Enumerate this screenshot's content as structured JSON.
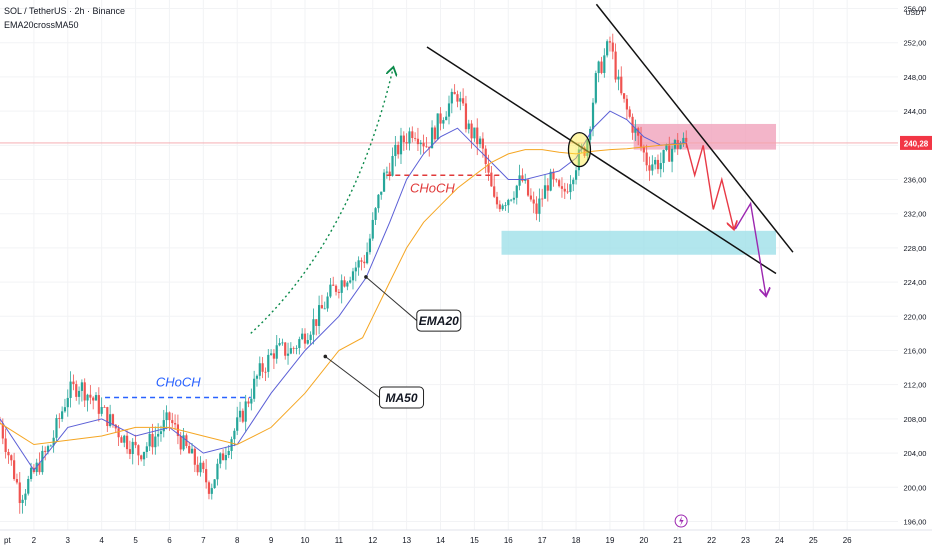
{
  "header": {
    "symbol": "SOL / TetherUS · 2h · Binance",
    "indicator": "EMA20crossMA50"
  },
  "chart_data": {
    "type": "candlestick",
    "currency_label": "USDT",
    "current_price_label": "240,28",
    "current_price": 240.28,
    "ylim": [
      195,
      257
    ],
    "y_ticks": [
      "256,00",
      "252,00",
      "248,00",
      "244,00",
      "240,00",
      "236,00",
      "232,00",
      "228,00",
      "224,00",
      "220,00",
      "216,00",
      "212,00",
      "208,00",
      "204,00",
      "200,00",
      "196,00"
    ],
    "y_tick_values": [
      256,
      252,
      248,
      244,
      240,
      236,
      232,
      228,
      224,
      220,
      216,
      212,
      208,
      204,
      200,
      196
    ],
    "xlim": [
      1.0,
      27.5
    ],
    "x_ticks": [
      {
        "label": "pt",
        "day": 1.0
      },
      {
        "label": "2",
        "day": 2
      },
      {
        "label": "3",
        "day": 3
      },
      {
        "label": "4",
        "day": 4
      },
      {
        "label": "5",
        "day": 5
      },
      {
        "label": "6",
        "day": 6
      },
      {
        "label": "7",
        "day": 7
      },
      {
        "label": "8",
        "day": 8
      },
      {
        "label": "9",
        "day": 9
      },
      {
        "label": "10",
        "day": 10
      },
      {
        "label": "11",
        "day": 11
      },
      {
        "label": "12",
        "day": 12
      },
      {
        "label": "13",
        "day": 13
      },
      {
        "label": "14",
        "day": 14
      },
      {
        "label": "15",
        "day": 15
      },
      {
        "label": "16",
        "day": 16
      },
      {
        "label": "17",
        "day": 17
      },
      {
        "label": "18",
        "day": 18
      },
      {
        "label": "19",
        "day": 19
      },
      {
        "label": "20",
        "day": 20
      },
      {
        "label": "21",
        "day": 21
      },
      {
        "label": "22",
        "day": 22
      },
      {
        "label": "23",
        "day": 23
      },
      {
        "label": "24",
        "day": 24
      },
      {
        "label": "25",
        "day": 25
      },
      {
        "label": "26",
        "day": 26
      }
    ],
    "price_path": [
      [
        1.0,
        207.5
      ],
      [
        1.6,
        199
      ],
      [
        2.05,
        202
      ],
      [
        2.5,
        205
      ],
      [
        3.0,
        211
      ],
      [
        3.35,
        212
      ],
      [
        3.8,
        210
      ],
      [
        4.2,
        208
      ],
      [
        4.6,
        206
      ],
      [
        5.1,
        204
      ],
      [
        5.6,
        206
      ],
      [
        6.0,
        208
      ],
      [
        6.4,
        205
      ],
      [
        6.9,
        202
      ],
      [
        7.2,
        200
      ],
      [
        7.7,
        205
      ],
      [
        8.1,
        208
      ],
      [
        8.6,
        213
      ],
      [
        9.1,
        216
      ],
      [
        9.6,
        216
      ],
      [
        10.0,
        218
      ],
      [
        10.4,
        220
      ],
      [
        10.8,
        223
      ],
      [
        11.3,
        225
      ],
      [
        11.8,
        227
      ],
      [
        12.3,
        236
      ],
      [
        12.8,
        240
      ],
      [
        13.2,
        242
      ],
      [
        13.6,
        240
      ],
      [
        14.1,
        244
      ],
      [
        14.5,
        246
      ],
      [
        14.8,
        242
      ],
      [
        15.2,
        240
      ],
      [
        15.6,
        233
      ],
      [
        16.0,
        234
      ],
      [
        16.4,
        236
      ],
      [
        16.8,
        232
      ],
      [
        17.2,
        236
      ],
      [
        17.6,
        234
      ],
      [
        18.0,
        238
      ],
      [
        18.3,
        240
      ],
      [
        18.6,
        248
      ],
      [
        19.0,
        252
      ],
      [
        19.3,
        246
      ],
      [
        19.7,
        242
      ],
      [
        20.1,
        238
      ],
      [
        20.5,
        238
      ],
      [
        20.9,
        240
      ],
      [
        21.25,
        240.3
      ]
    ],
    "series": [
      {
        "name": "EMA20",
        "color": "#5b5fd6",
        "points": [
          [
            1.0,
            208
          ],
          [
            2.0,
            202
          ],
          [
            3.0,
            207
          ],
          [
            4.0,
            208
          ],
          [
            5.0,
            206
          ],
          [
            6.0,
            207
          ],
          [
            7.0,
            204
          ],
          [
            8.0,
            205
          ],
          [
            9.0,
            211
          ],
          [
            10.0,
            216
          ],
          [
            11.0,
            220
          ],
          [
            11.8,
            224.5
          ],
          [
            12.5,
            231
          ],
          [
            13.0,
            236
          ],
          [
            13.5,
            239
          ],
          [
            14.0,
            241
          ],
          [
            14.5,
            242
          ],
          [
            15.0,
            240
          ],
          [
            15.5,
            238
          ],
          [
            16.0,
            236
          ],
          [
            16.5,
            236
          ],
          [
            17.0,
            236.5
          ],
          [
            17.5,
            237
          ],
          [
            18.0,
            238.5
          ],
          [
            18.5,
            242
          ],
          [
            19.0,
            244
          ],
          [
            19.5,
            243
          ],
          [
            20.0,
            241
          ],
          [
            20.5,
            240
          ],
          [
            21.25,
            240.3
          ]
        ]
      },
      {
        "name": "MA50",
        "color": "#f5a623",
        "points": [
          [
            1.0,
            207.5
          ],
          [
            2.0,
            205
          ],
          [
            3.0,
            205.5
          ],
          [
            4.0,
            206
          ],
          [
            5.0,
            207
          ],
          [
            6.0,
            207
          ],
          [
            7.0,
            206
          ],
          [
            8.0,
            205
          ],
          [
            9.0,
            207
          ],
          [
            10.0,
            211
          ],
          [
            11.0,
            216
          ],
          [
            11.7,
            217.5
          ],
          [
            12.5,
            224
          ],
          [
            13.0,
            228
          ],
          [
            13.5,
            231
          ],
          [
            14.0,
            233
          ],
          [
            14.5,
            235
          ],
          [
            15.0,
            236.5
          ],
          [
            15.5,
            238
          ],
          [
            16.0,
            239
          ],
          [
            16.5,
            239.5
          ],
          [
            17.0,
            239.5
          ],
          [
            17.5,
            239.2
          ],
          [
            18.0,
            239
          ],
          [
            18.5,
            239.3
          ],
          [
            19.0,
            239.5
          ],
          [
            19.5,
            239.6
          ],
          [
            20.0,
            239.8
          ],
          [
            20.5,
            240
          ],
          [
            21.25,
            240.2
          ]
        ]
      }
    ],
    "annotations": [
      {
        "kind": "label",
        "name": "choch-upper",
        "text": "CHoCH",
        "color": "#e03a3a",
        "day": 13.1,
        "price": 234.5
      },
      {
        "kind": "label",
        "name": "choch-lower",
        "text": "CHoCH",
        "color": "#2962ff",
        "day": 5.6,
        "price": 211.8
      },
      {
        "kind": "callout",
        "name": "ema20-callout",
        "text": "EMA20",
        "from": [
          11.8,
          224.6
        ],
        "to": [
          13.3,
          219.5
        ]
      },
      {
        "kind": "callout",
        "name": "ma50-callout",
        "text": "MA50",
        "from": [
          10.6,
          215.3
        ],
        "to": [
          12.2,
          210.5
        ]
      },
      {
        "kind": "dashed",
        "name": "choch-upper-line",
        "color": "#e03a3a",
        "from": [
          12.4,
          236.5
        ],
        "to": [
          15.8,
          236.5
        ]
      },
      {
        "kind": "dashed",
        "name": "choch-lower-line",
        "color": "#2962ff",
        "from": [
          4.1,
          210.5
        ],
        "to": [
          8.4,
          210.5
        ]
      },
      {
        "kind": "trendline",
        "name": "lower-trendline",
        "from": [
          13.6,
          251.5
        ],
        "to": [
          23.9,
          225
        ]
      },
      {
        "kind": "trendline",
        "name": "upper-trendline",
        "from": [
          18.6,
          256.5
        ],
        "to": [
          24.4,
          227.5
        ]
      },
      {
        "kind": "zone",
        "name": "supply-zone",
        "color": "#f0a3bc",
        "x0": 19.7,
        "x1": 23.9,
        "y0": 239.5,
        "y1": 242.5
      },
      {
        "kind": "zone",
        "name": "demand-zone",
        "color": "#9fe0e8",
        "x0": 15.8,
        "x1": 23.9,
        "y0": 227.2,
        "y1": 230
      },
      {
        "kind": "circle",
        "name": "cross-marker",
        "day": 18.1,
        "price": 239.5
      }
    ]
  }
}
